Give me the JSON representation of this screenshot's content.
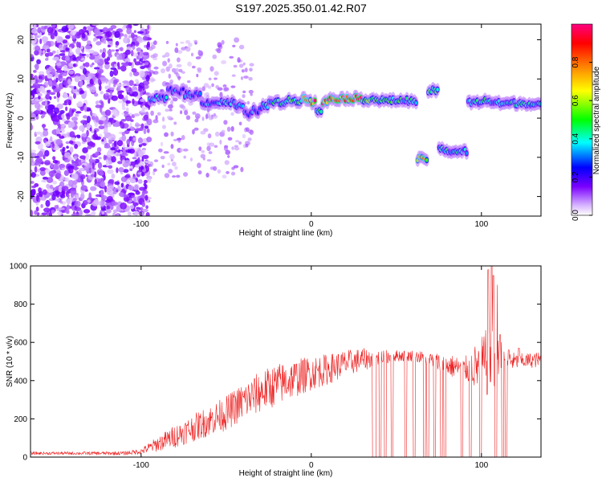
{
  "chart_data": [
    {
      "type": "heatmap",
      "title": "S197.2025.350.01.42.R07",
      "xlabel": "Height of straight line (km)",
      "ylabel": "Frequency (Hz)",
      "xlim": [
        -165,
        135
      ],
      "ylim": [
        -25,
        24
      ],
      "xticks": [
        -100,
        0,
        100
      ],
      "yticks": [
        20,
        10,
        0,
        -10,
        -20
      ],
      "colorbar": {
        "label": "Normalized spectral amplitude",
        "range": [
          0,
          1
        ],
        "ticks": [
          "0.0",
          "0.2",
          "0.4",
          "0.6",
          "0.8"
        ],
        "colors": [
          "#ffffff",
          "#c79cff",
          "#7a00ff",
          "#0000ff",
          "#00ffff",
          "#00ff00",
          "#ffff00",
          "#ff7f00",
          "#ff0000",
          "#ff007f"
        ]
      },
      "ridge": {
        "x": [
          -95,
          -85,
          -75,
          -65,
          -55,
          -45,
          -40,
          -35,
          -30,
          -25,
          -15,
          -5,
          0,
          3,
          6,
          10,
          20,
          30,
          40,
          50,
          58,
          62,
          66,
          68,
          70,
          75,
          80,
          88,
          92,
          100,
          105,
          110,
          120,
          130,
          135
        ],
        "freq": [
          5,
          7,
          6,
          4,
          4,
          3,
          1,
          2,
          3,
          4,
          4.5,
          5,
          4,
          2,
          4,
          5,
          5,
          4.8,
          4.5,
          4.5,
          4.3,
          -10.5,
          -10.5,
          7,
          7,
          -8,
          -8.5,
          -8.5,
          4,
          4.5,
          4,
          3.8,
          3.8,
          3.5,
          3.6
        ],
        "amp": [
          0.35,
          0.3,
          0.3,
          0.3,
          0.35,
          0.35,
          0.3,
          0.3,
          0.4,
          0.45,
          0.5,
          0.7,
          0.9,
          0.5,
          0.8,
          0.9,
          0.85,
          0.6,
          0.45,
          0.45,
          0.4,
          0.7,
          0.7,
          0.55,
          0.5,
          0.4,
          0.4,
          0.35,
          0.4,
          0.45,
          0.4,
          0.4,
          0.4,
          0.4,
          0.4
        ]
      }
    },
    {
      "type": "line",
      "xlabel": "Height of straight line (km)",
      "ylabel": "SNR (10 * v/v)",
      "xlim": [
        -165,
        135
      ],
      "ylim": [
        0,
        1000
      ],
      "xticks": [
        -100,
        0,
        100
      ],
      "yticks": [
        0,
        200,
        400,
        600,
        800,
        1000
      ],
      "color": "#ee2222",
      "series": [
        {
          "name": "SNR",
          "envelope_x": [
            -165,
            -140,
            -110,
            -100,
            -90,
            -80,
            -70,
            -60,
            -50,
            -40,
            -30,
            -20,
            -10,
            0,
            10,
            20,
            30,
            40,
            50,
            60,
            70,
            80,
            90,
            100,
            105,
            110,
            120,
            135
          ],
          "envelope_y": [
            20,
            20,
            20,
            30,
            70,
            110,
            150,
            190,
            230,
            290,
            340,
            380,
            410,
            440,
            460,
            490,
            510,
            520,
            530,
            530,
            510,
            480,
            460,
            480,
            500,
            520,
            500,
            510
          ],
          "noise_amplitude": [
            8,
            8,
            10,
            15,
            40,
            60,
            70,
            80,
            90,
            100,
            110,
            110,
            100,
            90,
            80,
            70,
            60,
            40,
            30,
            30,
            40,
            60,
            60,
            150,
            200,
            100,
            40,
            40
          ]
        }
      ],
      "dropouts": [
        [
          36,
          38
        ],
        [
          40,
          41
        ],
        [
          43,
          44
        ],
        [
          47,
          48
        ],
        [
          55,
          56
        ],
        [
          60,
          61
        ],
        [
          66,
          67
        ],
        [
          68,
          69
        ],
        [
          72,
          73
        ],
        [
          76,
          77
        ],
        [
          78,
          79
        ],
        [
          88,
          89
        ],
        [
          93,
          94
        ],
        [
          99,
          100
        ],
        [
          108,
          109
        ],
        [
          112,
          113
        ],
        [
          114,
          115
        ]
      ],
      "spikes": [
        [
          104,
          980
        ],
        [
          106,
          1000
        ],
        [
          107,
          950
        ],
        [
          109,
          900
        ],
        [
          111,
          640
        ],
        [
          116,
          560
        ],
        [
          122,
          570
        ]
      ]
    }
  ]
}
